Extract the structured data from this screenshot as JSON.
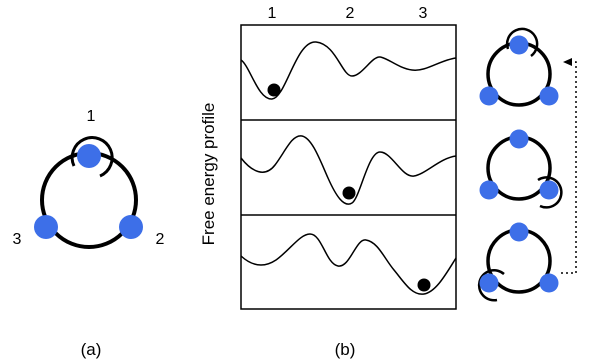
{
  "panel_a": {
    "caption": "(a)",
    "site_labels": [
      "1",
      "2",
      "3"
    ]
  },
  "panel_b": {
    "caption": "(b)",
    "ylabel": "Free energy profile",
    "site_labels": [
      "1",
      "2",
      "3"
    ]
  },
  "colors": {
    "site": "#3d6fe8",
    "stroke": "#000000",
    "particle": "#000000"
  }
}
